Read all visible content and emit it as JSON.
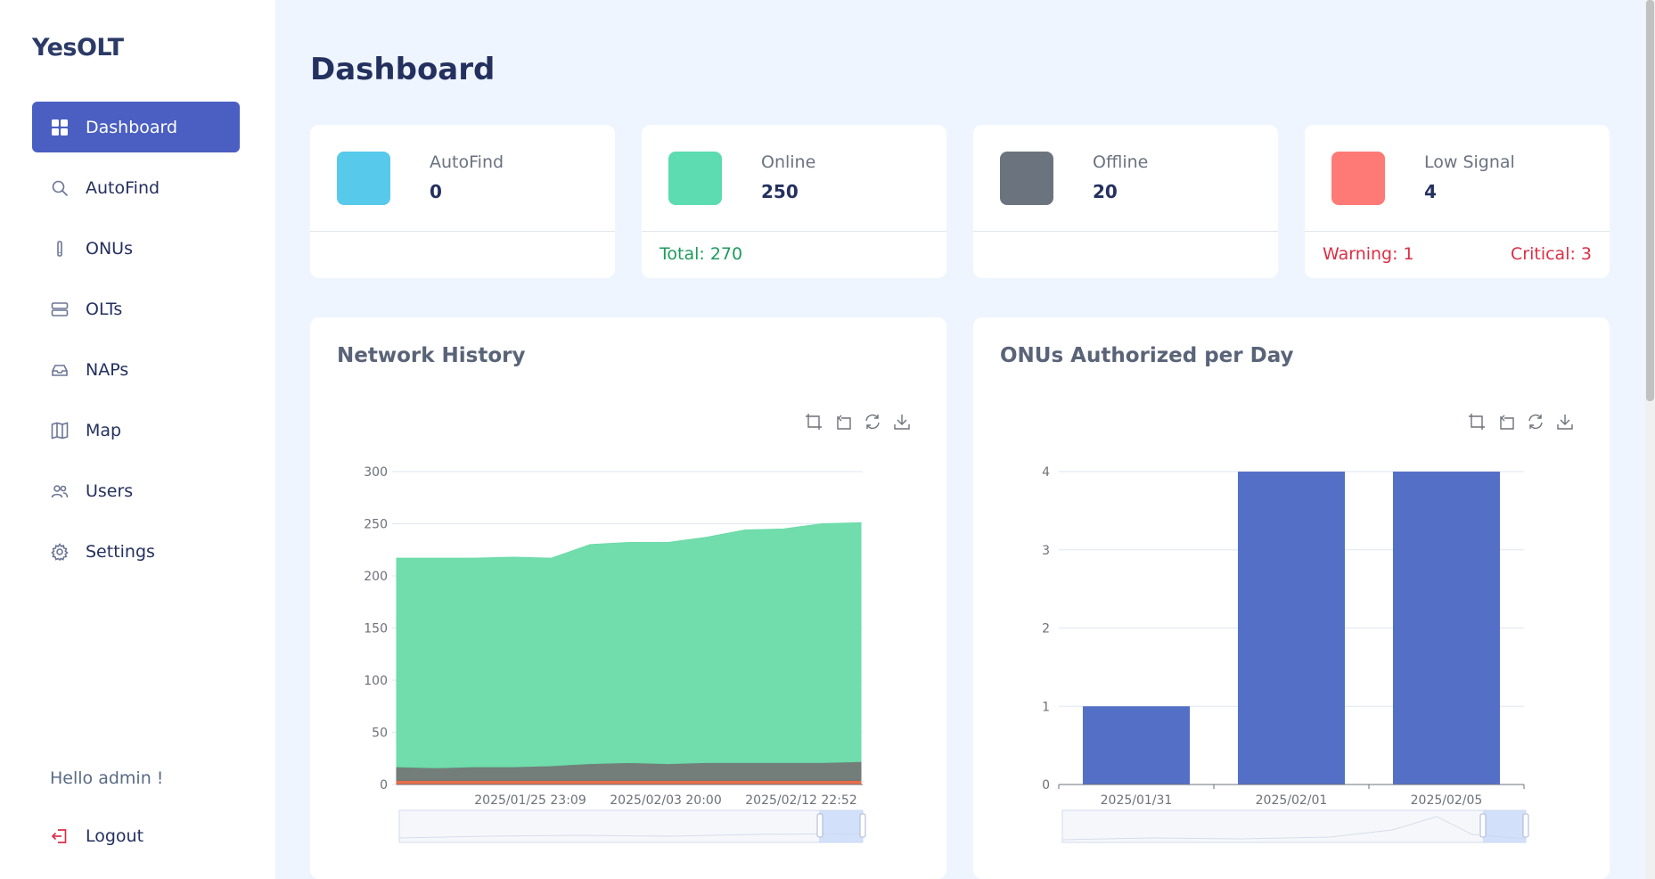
{
  "app": {
    "brand": "YesOLT"
  },
  "sidebar": {
    "items": [
      {
        "label": "Dashboard",
        "icon": "grid-icon",
        "active": true
      },
      {
        "label": "AutoFind",
        "icon": "search-icon"
      },
      {
        "label": "ONUs",
        "icon": "device-icon"
      },
      {
        "label": "OLTs",
        "icon": "server-icon"
      },
      {
        "label": "NAPs",
        "icon": "inbox-icon"
      },
      {
        "label": "Map",
        "icon": "map-icon"
      },
      {
        "label": "Users",
        "icon": "users-icon"
      },
      {
        "label": "Settings",
        "icon": "gear-icon"
      }
    ],
    "greeting": "Hello admin !",
    "logout_label": "Logout"
  },
  "page": {
    "title": "Dashboard"
  },
  "stats": [
    {
      "label": "AutoFind",
      "value": "0",
      "color": "#57c9ea"
    },
    {
      "label": "Online",
      "value": "250",
      "color": "#5cdcb0",
      "total": "Total: 270"
    },
    {
      "label": "Offline",
      "value": "20",
      "color": "#6b747e"
    },
    {
      "label": "Low Signal",
      "value": "4",
      "color": "#fd7a76",
      "warning": "Warning: 1",
      "critical": "Critical: 3"
    }
  ],
  "colors": {
    "accent": "#4a5fc1",
    "online_area": "#6adba8",
    "offline_area": "#6b7773",
    "low_signal_area": "#e8663f",
    "bar": "#5470c6",
    "total_text": "#1e9a5b",
    "alert_text": "#dc2e45"
  },
  "toolbox_icons": [
    "zoom-icon",
    "zoom-reset-icon",
    "restore-icon",
    "download-icon"
  ],
  "chart_data": [
    {
      "title": "Network History",
      "type": "area",
      "stacked": true,
      "x_ticks": [
        "2025/01/25 23:09",
        "2025/02/03 20:00",
        "2025/02/12 22:52"
      ],
      "ylim": [
        0,
        300
      ],
      "y_ticks": [
        0,
        50,
        100,
        150,
        200,
        250,
        300
      ],
      "series": [
        {
          "values": [
            4,
            4,
            4,
            4,
            4,
            4,
            4,
            4,
            4,
            4,
            4,
            4,
            4
          ]
        },
        {
          "values": [
            13,
            12,
            13,
            13,
            14,
            16,
            17,
            16,
            17,
            17,
            17,
            17,
            18
          ]
        },
        {
          "values": [
            200,
            201,
            200,
            201,
            199,
            210,
            211,
            212,
            216,
            223,
            224,
            229,
            229
          ]
        }
      ],
      "grid": true,
      "dataZoom": true
    },
    {
      "title": "ONUs Authorized per Day",
      "type": "bar",
      "categories": [
        "2025/01/31",
        "2025/02/01",
        "2025/02/05"
      ],
      "values": [
        1,
        4,
        4
      ],
      "ylim": [
        0,
        4
      ],
      "y_ticks": [
        0,
        1,
        2,
        3,
        4
      ],
      "grid": true,
      "dataZoom": true
    }
  ]
}
